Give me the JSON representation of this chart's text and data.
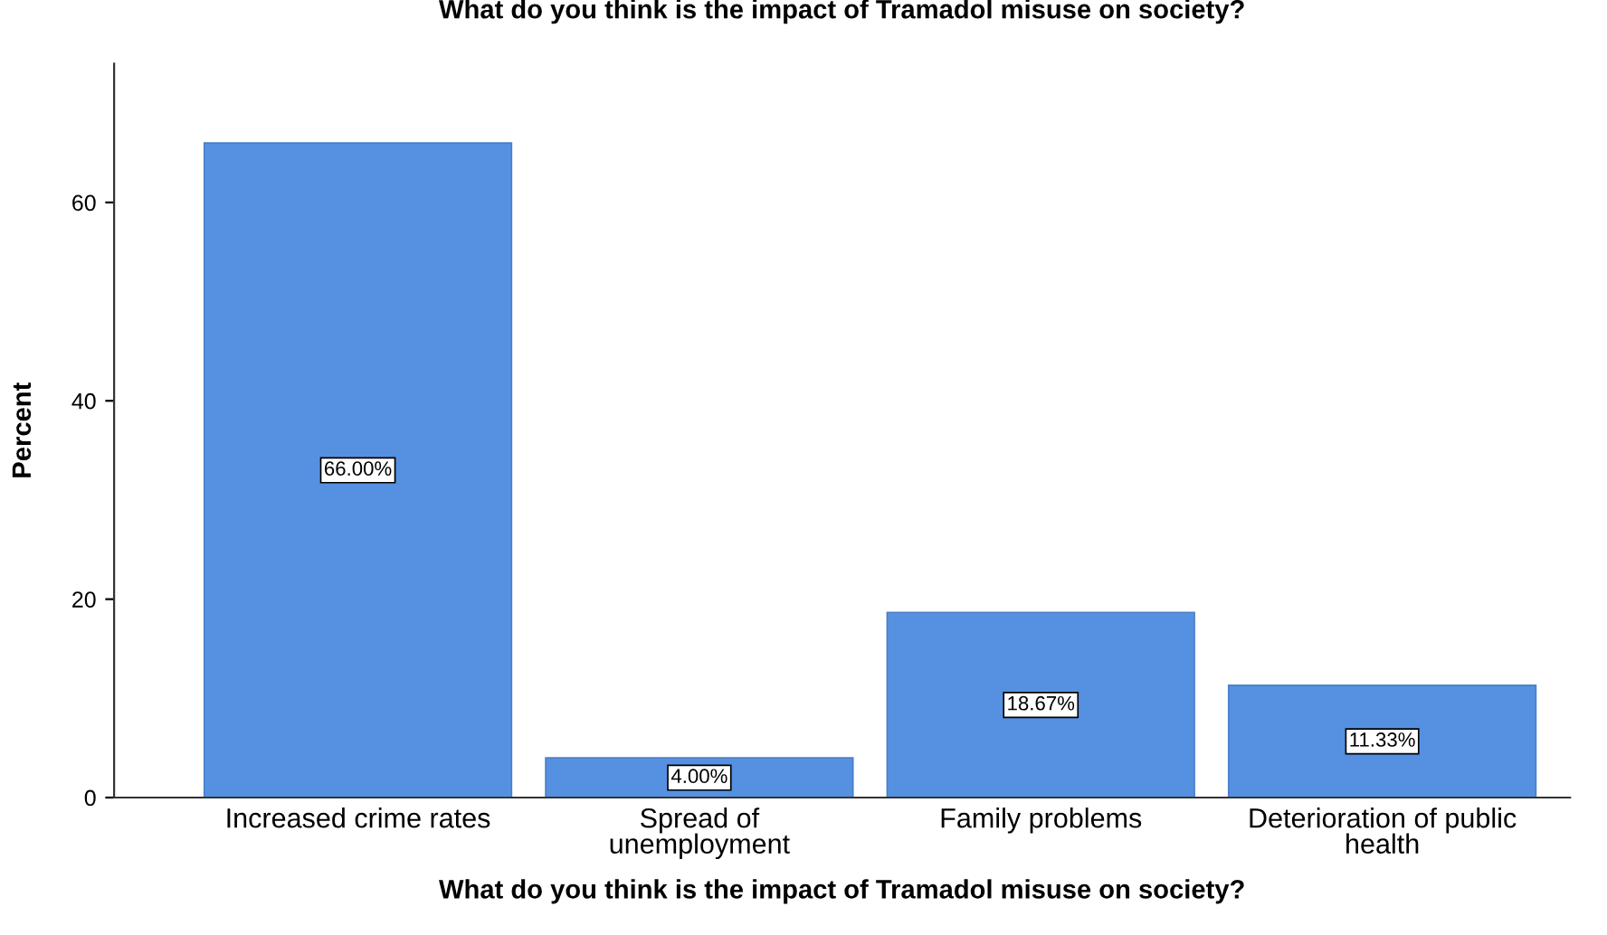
{
  "chart_data": {
    "type": "bar",
    "title": "What do you think is the impact of Tramadol misuse on society?",
    "xlabel": "What do you think is the impact of Tramadol misuse on society?",
    "ylabel": "Percent",
    "categories": [
      "Increased crime rates",
      "Spread of\nunemployment",
      "Family problems",
      "Deterioration of public\nhealth"
    ],
    "values": [
      66.0,
      4.0,
      18.67,
      11.33
    ],
    "value_labels": [
      "66.00%",
      "4.00%",
      "18.67%",
      "11.33%"
    ],
    "color": "#5591e0",
    "ylim": [
      0,
      74
    ],
    "yticks": [
      0,
      20,
      40,
      60
    ],
    "grid": false,
    "legend": false
  }
}
